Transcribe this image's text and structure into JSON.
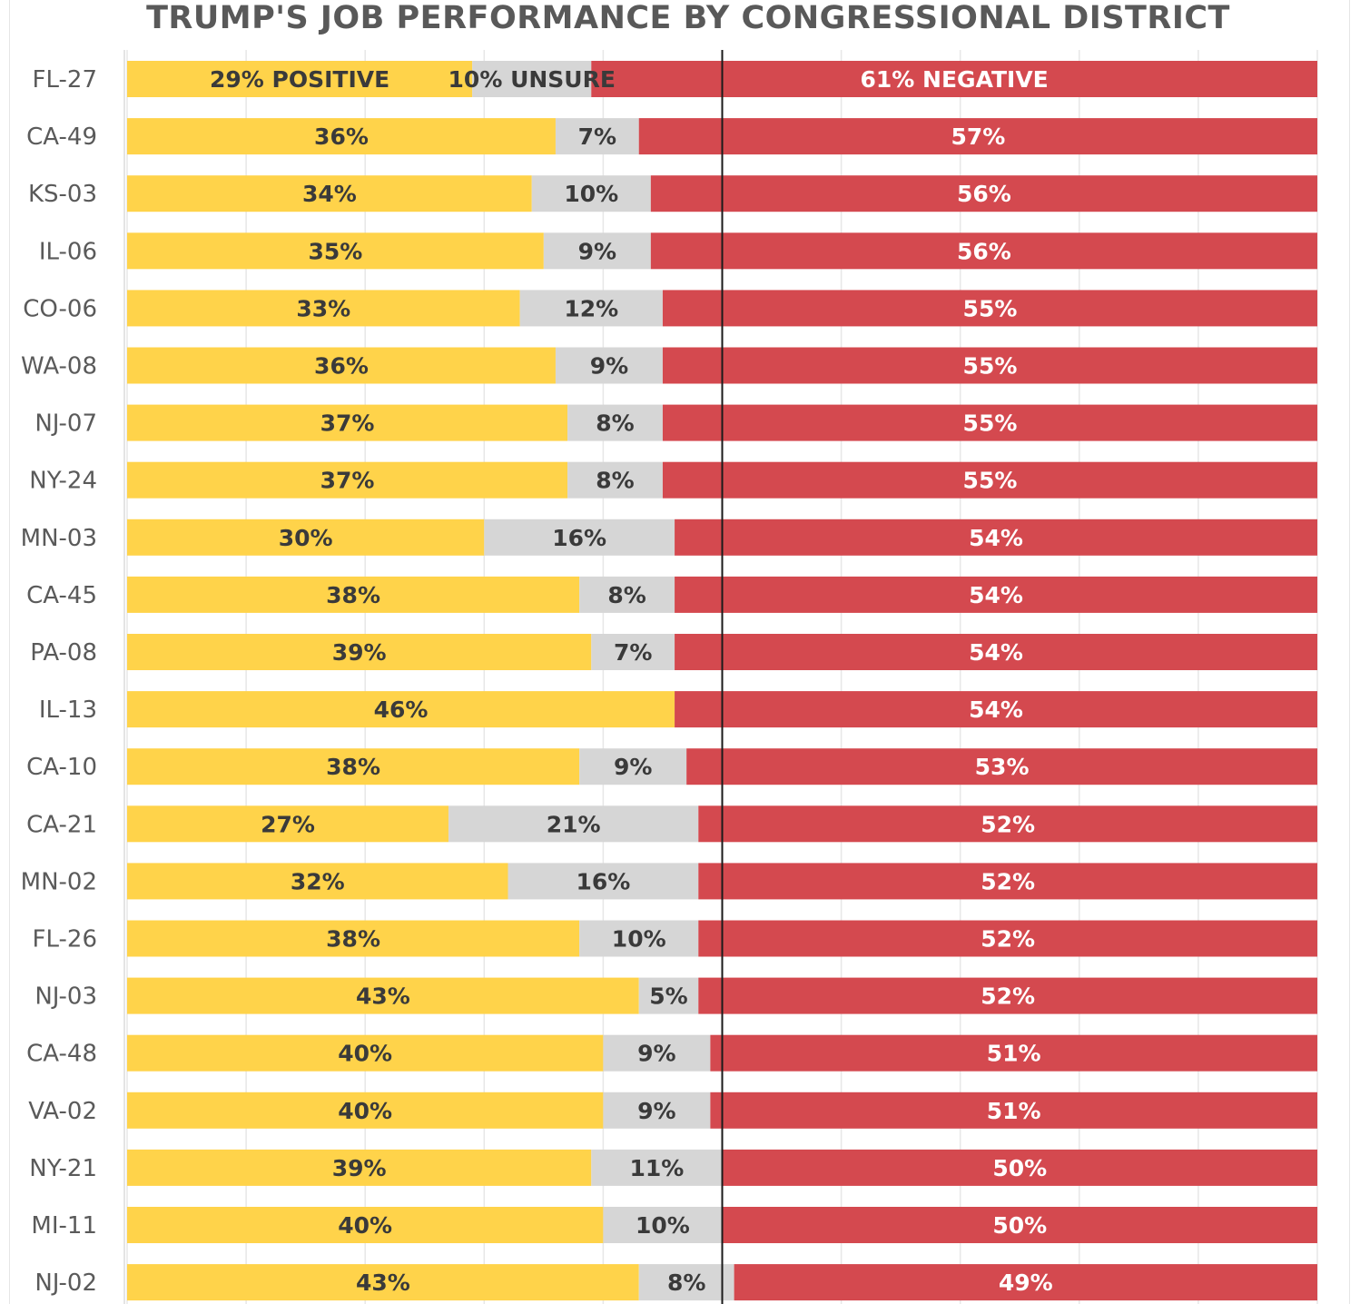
{
  "chart_data": {
    "type": "bar",
    "orientation": "horizontal",
    "stacked": true,
    "title": "TRUMP'S JOB PERFORMANCE BY CONGRESSIONAL DISTRICT",
    "xlabel": "",
    "ylabel": "",
    "xlim": [
      0,
      100
    ],
    "grid": true,
    "legend": "none",
    "categories": [
      "FL-27",
      "CA-49",
      "KS-03",
      "IL-06",
      "CO-06",
      "WA-08",
      "NJ-07",
      "NY-24",
      "MN-03",
      "CA-45",
      "PA-08",
      "IL-13",
      "CA-10",
      "CA-21",
      "MN-02",
      "FL-26",
      "NJ-03",
      "CA-48",
      "VA-02",
      "NY-21",
      "MI-11",
      "NJ-02"
    ],
    "series": [
      {
        "name": "Positive",
        "color": "#ffd34a",
        "label_color": "#3a3a3a",
        "values": [
          29,
          36,
          34,
          35,
          33,
          36,
          37,
          37,
          30,
          38,
          39,
          46,
          38,
          27,
          32,
          38,
          43,
          40,
          40,
          39,
          40,
          43
        ],
        "labels": [
          "29% POSITIVE",
          "36%",
          "34%",
          "35%",
          "33%",
          "36%",
          "37%",
          "37%",
          "30%",
          "38%",
          "39%",
          "46%",
          "38%",
          "27%",
          "32%",
          "38%",
          "43%",
          "40%",
          "40%",
          "39%",
          "40%",
          "43%"
        ]
      },
      {
        "name": "Unsure",
        "color": "#d6d6d6",
        "label_color": "#3a3a3a",
        "values": [
          10,
          7,
          10,
          9,
          12,
          9,
          8,
          8,
          16,
          8,
          7,
          0,
          9,
          21,
          16,
          10,
          5,
          9,
          9,
          11,
          10,
          8
        ],
        "labels": [
          "10% UNSURE",
          "7%",
          "10%",
          "9%",
          "12%",
          "9%",
          "8%",
          "8%",
          "16%",
          "8%",
          "7%",
          "",
          "9%",
          "21%",
          "16%",
          "10%",
          "5%",
          "9%",
          "9%",
          "11%",
          "10%",
          "8%"
        ]
      },
      {
        "name": "Negative",
        "color": "#d4494f",
        "label_color": "#ffffff",
        "values": [
          61,
          57,
          56,
          56,
          55,
          55,
          55,
          55,
          54,
          54,
          54,
          54,
          53,
          52,
          52,
          52,
          52,
          51,
          51,
          50,
          50,
          49
        ],
        "labels": [
          "61% NEGATIVE",
          "57%",
          "56%",
          "56%",
          "55%",
          "55%",
          "55%",
          "55%",
          "54%",
          "54%",
          "54%",
          "54%",
          "53%",
          "52%",
          "52%",
          "52%",
          "52%",
          "51%",
          "51%",
          "50%",
          "50%",
          "49%"
        ]
      }
    ],
    "reference_line": 50
  }
}
